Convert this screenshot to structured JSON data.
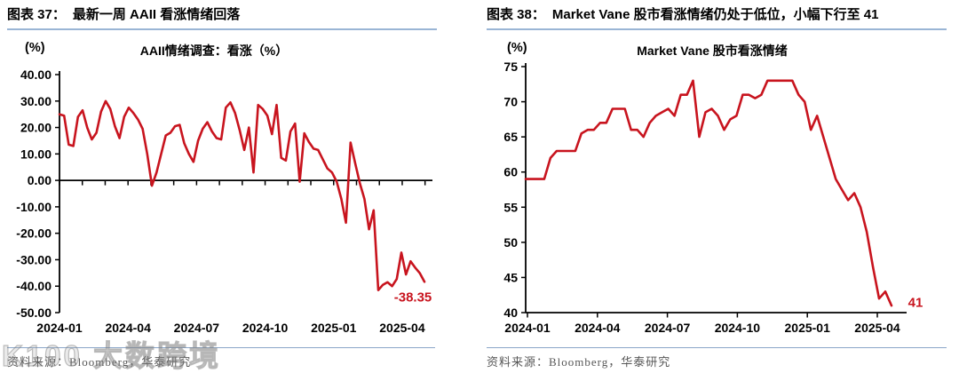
{
  "figures": [
    {
      "caption_label": "图表 37：",
      "caption_text": "最新一周 AAII 看涨情绪回落",
      "source": "资料来源：Bloomberg，华泰研究"
    },
    {
      "caption_label": "图表 38：",
      "caption_text": "Market Vane 股市看涨情绪仍处于低位，小幅下行至 41",
      "source": "资料来源：Bloomberg，华泰研究"
    }
  ],
  "watermark": "K100 大数跨境",
  "colors": {
    "series_red": "#C8141E",
    "annotation_red": "#C8141E",
    "header_rule_blue": "#9AB5D5",
    "footer_rule_blue": "#8AA6C8",
    "source_gray": "#575757",
    "axis_black": "#000000"
  },
  "chart_data": [
    {
      "type": "line",
      "title": "AAII情绪调查：看涨（%）",
      "ylabel": "(%)",
      "ylim": [
        -50,
        40
      ],
      "x_axis_at_y": 0,
      "grid": false,
      "legend": "none",
      "y_tick_labels": [
        "40.00",
        "30.00",
        "20.00",
        "10.00",
        "0.00",
        "-10.00",
        "-20.00",
        "-30.00",
        "-40.00",
        "-50.00"
      ],
      "x_tick_labels": [
        "2024-01",
        "2024-04",
        "2024-07",
        "2024-10",
        "2025-01",
        "2025-04"
      ],
      "x_range": "2024-01 to 2025-05, weekly",
      "last_value_annotation": "-38.35",
      "series": [
        {
          "name": "AAII情绪调查：看涨（%）",
          "color": "#C8141E",
          "values": [
            25,
            24.5,
            13.5,
            13,
            24,
            26.5,
            20,
            15.5,
            18,
            26,
            30,
            27,
            20.5,
            16,
            24,
            27.5,
            25.5,
            23,
            19.5,
            10,
            -2,
            3,
            10,
            17,
            18,
            20.5,
            21,
            14,
            10,
            7,
            15,
            19.5,
            22,
            18.5,
            16,
            15.5,
            27.5,
            29.5,
            25.5,
            19,
            11.5,
            20,
            3,
            28.5,
            27,
            24.5,
            17.5,
            28.5,
            8.5,
            7.5,
            18.5,
            21.5,
            -0.5,
            17.8,
            14.5,
            12,
            11.5,
            8,
            4.5,
            3,
            -0.5,
            -7,
            -16,
            14.3,
            6.5,
            -1,
            -7,
            -18.5,
            -11.3,
            -41.5,
            -39.5,
            -38.5,
            -40,
            -37.3,
            -27.3,
            -35.6,
            -30.6,
            -33,
            -35.1,
            -38.35
          ]
        }
      ]
    },
    {
      "type": "line",
      "title": "Market Vane 股市看涨情绪",
      "ylabel": "(%)",
      "ylim": [
        40,
        75
      ],
      "x_axis_at_y": 40,
      "grid": false,
      "legend": "none",
      "y_tick_labels": [
        "75",
        "70",
        "65",
        "60",
        "55",
        "50",
        "45",
        "40"
      ],
      "x_tick_labels": [
        "2024-01",
        "2024-04",
        "2024-07",
        "2024-10",
        "2025-01",
        "2025-04"
      ],
      "x_range": "2024-01 to 2025-05, weekly",
      "last_value_annotation": "41",
      "series": [
        {
          "name": "Market Vane 股市看涨情绪",
          "color": "#C8141E",
          "values": [
            59,
            59,
            59,
            59,
            62,
            63,
            63,
            63,
            63,
            65.5,
            66,
            66,
            67,
            67,
            69,
            69,
            69,
            66,
            66,
            65,
            67,
            68,
            68.5,
            69,
            68,
            71,
            71,
            73,
            65,
            68.5,
            69,
            68,
            66,
            67.5,
            68,
            71,
            71,
            70.5,
            71,
            73,
            73,
            73,
            73,
            73,
            71,
            70,
            66,
            68,
            65,
            62,
            59,
            57.5,
            56,
            57,
            55,
            51.5,
            46.5,
            42,
            43,
            41
          ]
        }
      ]
    }
  ]
}
